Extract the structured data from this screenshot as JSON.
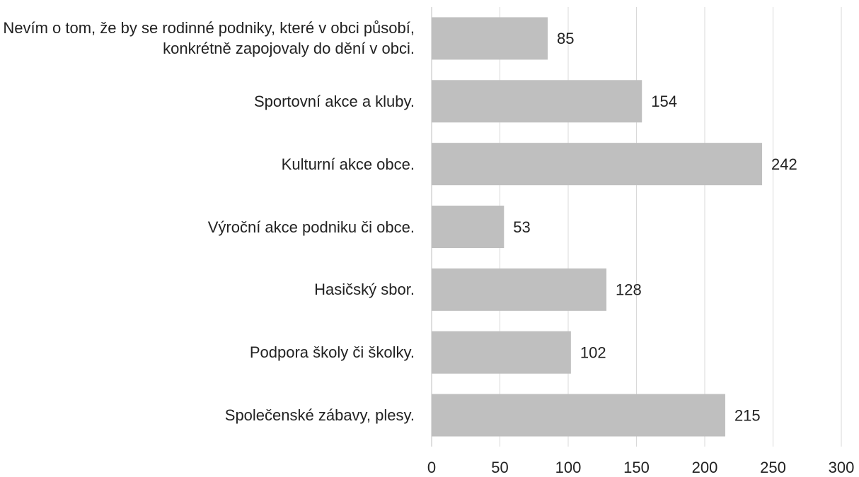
{
  "chart_data": {
    "type": "hbar",
    "categories": [
      "Nevím o tom, že by se rodinné podniky, které v obci působí, konkrétně zapojovaly do dění v obci.",
      "Sportovní akce a kluby.",
      "Kulturní akce obce.",
      "Výroční akce podniku či obce.",
      "Hasičský sbor.",
      "Podpora školy či školky.",
      "Společenské zábavy, plesy."
    ],
    "values": [
      85,
      154,
      242,
      53,
      128,
      102,
      215
    ],
    "color": "#bfbfbf",
    "xlim": [
      0,
      300
    ],
    "xticks": [
      0,
      50,
      100,
      150,
      200,
      250,
      300
    ],
    "grid": true
  }
}
